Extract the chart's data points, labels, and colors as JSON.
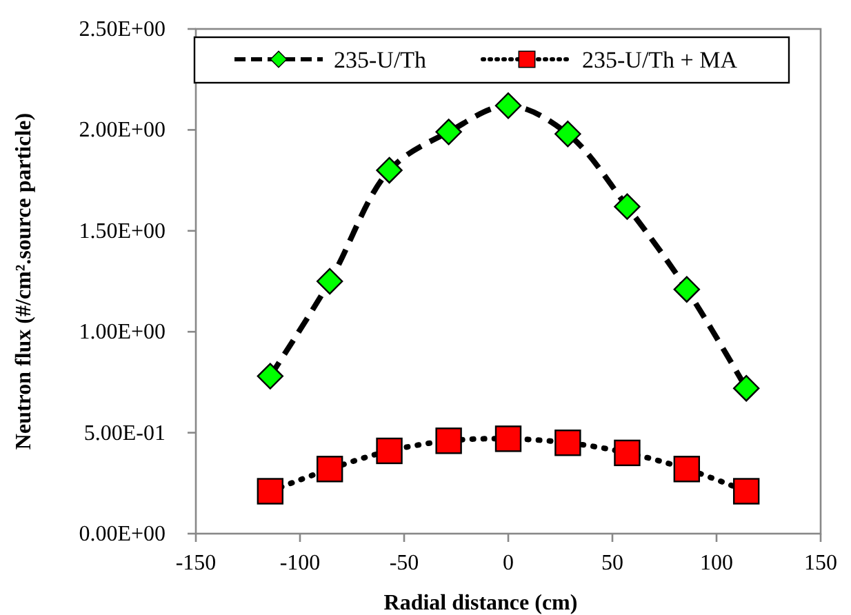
{
  "chart_data": {
    "type": "line",
    "xlabel": "Radial distance (cm)",
    "ylabel": "Neutron flux (#/cm².source particle)",
    "xlim": [
      -150,
      150
    ],
    "xticks": [
      -150,
      -100,
      -50,
      0,
      50,
      100,
      150
    ],
    "ylim": [
      0,
      2.5
    ],
    "yticks": [
      {
        "value": 0,
        "label": "0.00E+00"
      },
      {
        "value": 0.5,
        "label": "5.00E-01"
      },
      {
        "value": 1,
        "label": "1.00E+00"
      },
      {
        "value": 1.5,
        "label": "1.50E+00"
      },
      {
        "value": 2,
        "label": "2.00E+00"
      },
      {
        "value": 2.5,
        "label": "2.50E+00"
      }
    ],
    "x": [
      -114.3,
      -85.7,
      -57.1,
      -28.6,
      0,
      28.6,
      57.1,
      85.7,
      114.3
    ],
    "grid": false,
    "legend": "top",
    "series": [
      {
        "name": "235-U/Th",
        "color": "#00ff00",
        "marker": "diamond",
        "line_style": "dashed",
        "values": [
          0.78,
          1.25,
          1.8,
          1.99,
          2.12,
          1.98,
          1.62,
          1.21,
          0.72
        ]
      },
      {
        "name": "235-U/Th + MA",
        "color": "#ff0000",
        "marker": "square",
        "line_style": "dotted",
        "values": [
          0.21,
          0.32,
          0.41,
          0.46,
          0.47,
          0.45,
          0.4,
          0.32,
          0.21
        ]
      }
    ]
  }
}
